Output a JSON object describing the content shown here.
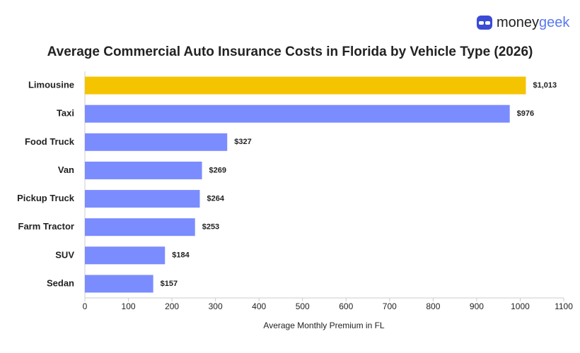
{
  "logo": [
    "money",
    "geek"
  ],
  "chart_data": {
    "type": "hbar",
    "title": "Average Commercial Auto Insurance Costs in Florida by Vehicle Type (2026)",
    "x_label": "Average Monthly Premium in FL",
    "categories": [
      "Limousine",
      "Taxi",
      "Food Truck",
      "Van",
      "Pickup Truck",
      "Farm Tractor",
      "SUV",
      "Sedan"
    ],
    "values": [
      1013,
      976,
      327,
      269,
      264,
      253,
      184,
      157
    ],
    "value_labels": [
      "$1,013",
      "$976",
      "$327",
      "$269",
      "$264",
      "$253",
      "$184",
      "$157"
    ],
    "colors": [
      "#f5c400",
      "#7b8cff",
      "#7b8cff",
      "#7b8cff",
      "#7b8cff",
      "#7b8cff",
      "#7b8cff",
      "#7b8cff"
    ],
    "xlim": [
      0,
      1100
    ],
    "xticks": [
      0,
      100,
      200,
      300,
      400,
      500,
      600,
      700,
      800,
      900,
      1000,
      1100
    ],
    "grid": false
  }
}
